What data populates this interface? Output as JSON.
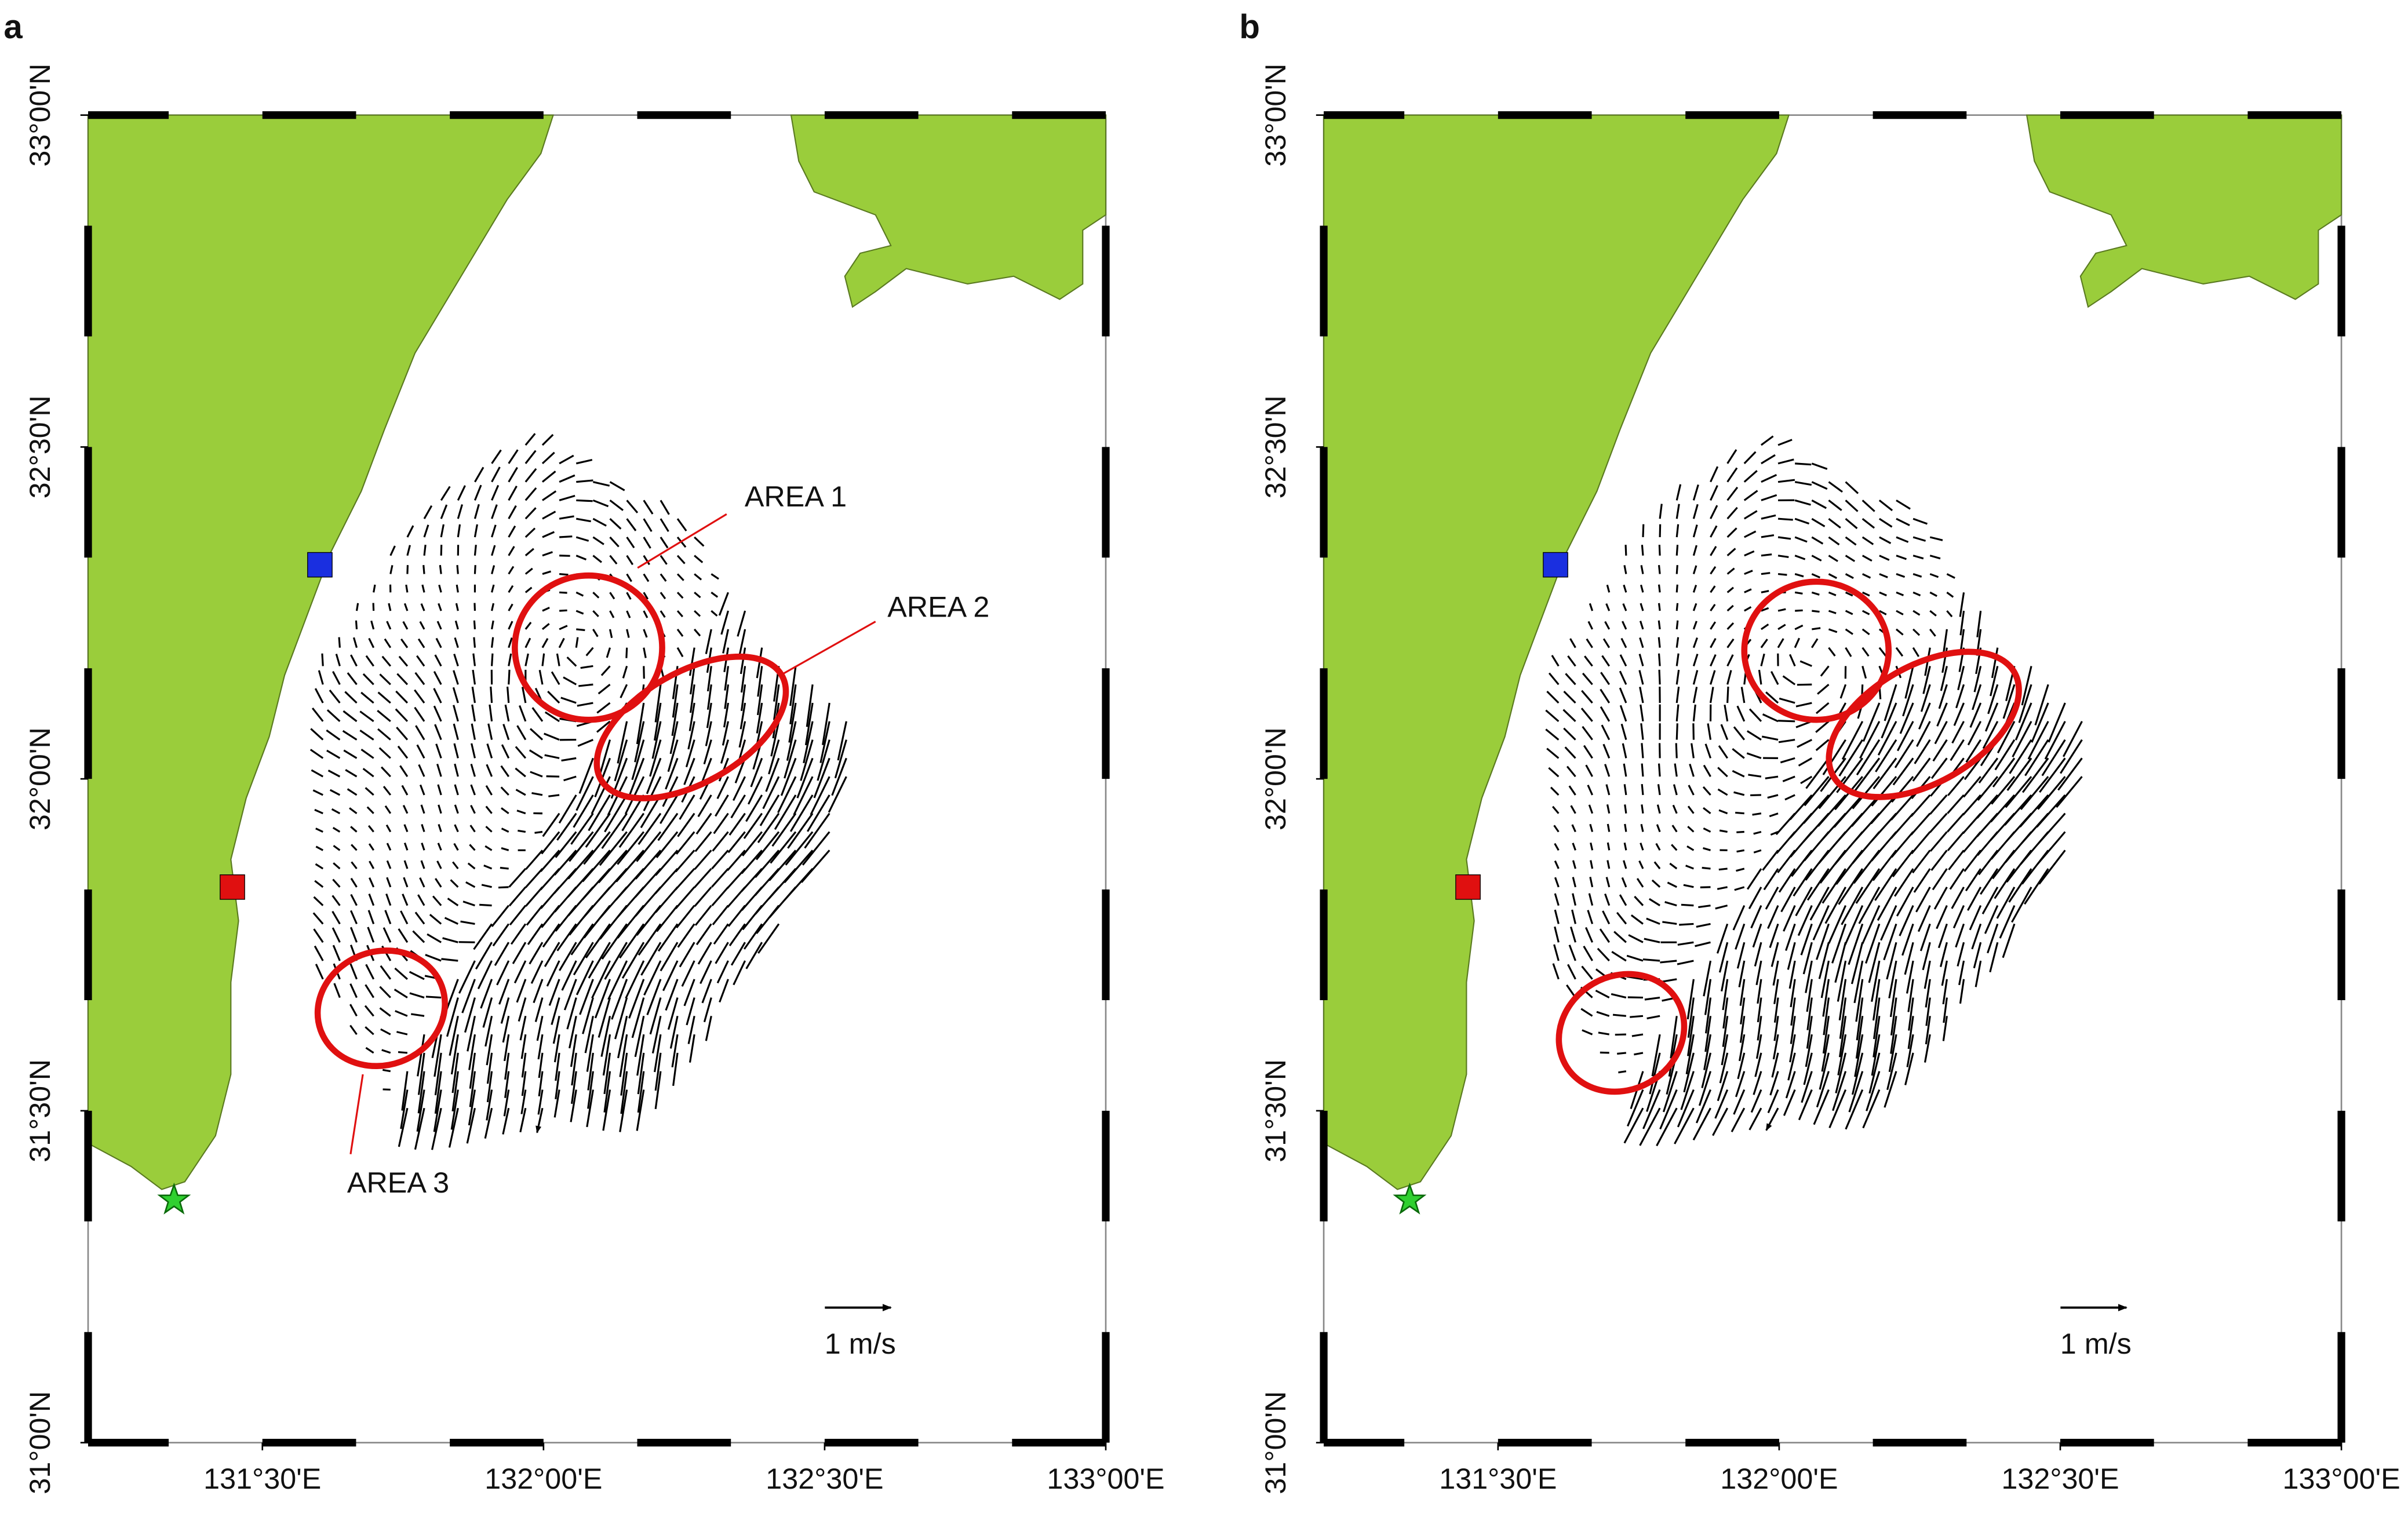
{
  "panels": [
    {
      "label": "a",
      "lat_lim": [
        31,
        33
      ],
      "lon_lim": [
        131.19,
        133
      ],
      "lat_ticks": [
        {
          "value": 31,
          "label": "31°00'N"
        },
        {
          "value": 31.5,
          "label": "31°30'N"
        },
        {
          "value": 32,
          "label": "32°00'N"
        },
        {
          "value": 32.5,
          "label": "32°30'N"
        },
        {
          "value": 33,
          "label": "33°00'N"
        }
      ],
      "lon_ticks": [
        {
          "value": 131.5,
          "label": "131°30'E"
        },
        {
          "value": 132,
          "label": "132°00'E"
        },
        {
          "value": 132.5,
          "label": "132°30'E"
        },
        {
          "value": 133,
          "label": "133°00'E"
        }
      ],
      "annotations": [
        "AREA 1",
        "AREA 2",
        "AREA 3"
      ],
      "scale_label": "1 m/s"
    },
    {
      "label": "b",
      "lat_lim": [
        31,
        33
      ],
      "lon_lim": [
        131.19,
        133
      ],
      "lat_ticks": [
        {
          "value": 31,
          "label": "31°00'N"
        },
        {
          "value": 31.5,
          "label": "31°30'N"
        },
        {
          "value": 32,
          "label": "32°00'N"
        },
        {
          "value": 32.5,
          "label": "32°30'N"
        },
        {
          "value": 33,
          "label": "33°00'N"
        }
      ],
      "lon_ticks": [
        {
          "value": 131.5,
          "label": "131°30'E"
        },
        {
          "value": 132,
          "label": "132°00'E"
        },
        {
          "value": 132.5,
          "label": "132°30'E"
        },
        {
          "value": 133,
          "label": "133°00'E"
        }
      ],
      "scale_label": "1 m/s"
    }
  ]
}
